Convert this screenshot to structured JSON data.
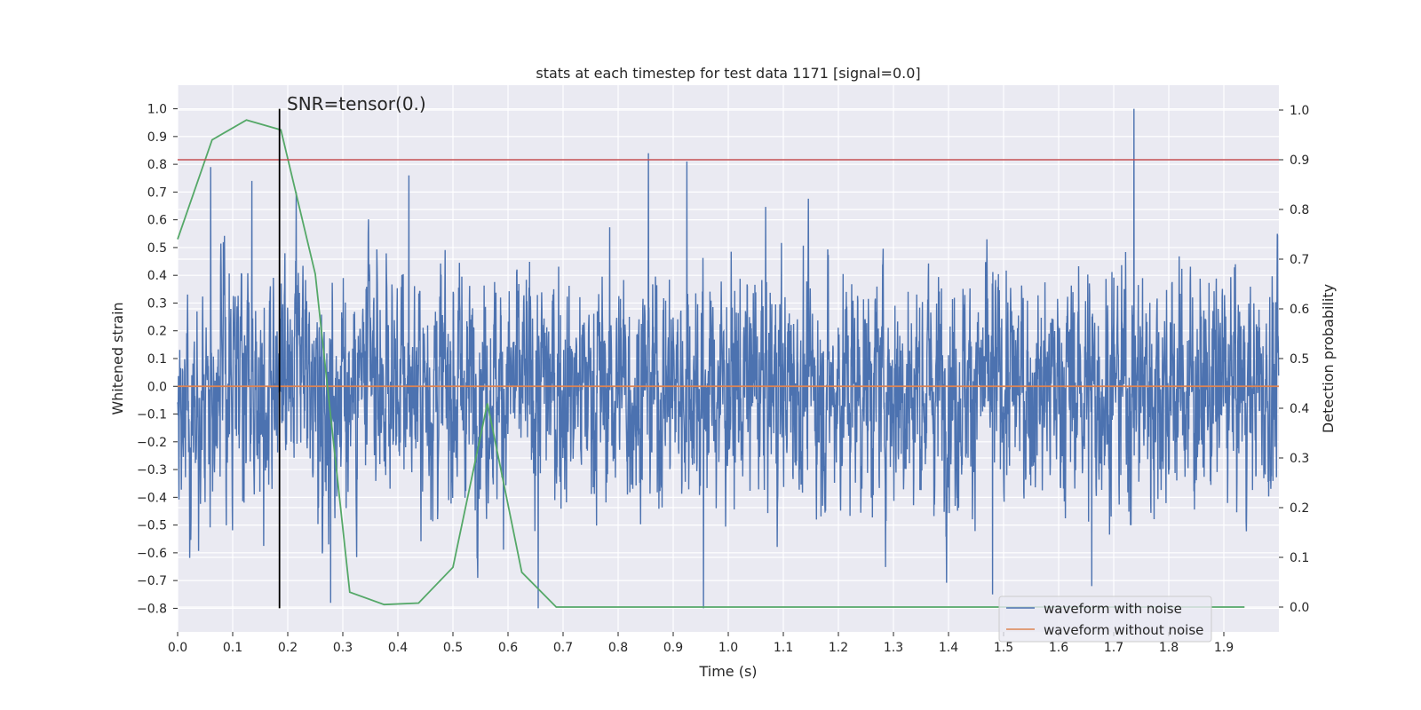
{
  "chart_data": {
    "type": "line",
    "title": "stats at each timestep for test data 1171 [signal=0.0]",
    "xlabel": "Time (s)",
    "ylabel": "Whitened strain",
    "y2label": "Detection probability",
    "xlim": [
      0.0,
      2.0
    ],
    "ylim": [
      -0.885,
      1.085
    ],
    "y2lim": [
      -0.05,
      1.05
    ],
    "xticks": [
      0.0,
      0.1,
      0.2,
      0.3,
      0.4,
      0.5,
      0.6,
      0.7,
      0.8,
      0.9,
      1.0,
      1.1,
      1.2,
      1.3,
      1.4,
      1.5,
      1.6,
      1.7,
      1.8,
      1.9
    ],
    "xtick_labels": [
      "0.0",
      "0.1",
      "0.2",
      "0.3",
      "0.4",
      "0.5",
      "0.6",
      "0.7",
      "0.8",
      "0.9",
      "1.0",
      "1.1",
      "1.2",
      "1.3",
      "1.4",
      "1.5",
      "1.6",
      "1.7",
      "1.8",
      "1.9"
    ],
    "yticks": [
      1.0,
      0.9,
      0.8,
      0.7,
      0.6,
      0.5,
      0.4,
      0.3,
      0.2,
      0.1,
      0.0,
      -0.1,
      -0.2,
      -0.3,
      -0.4,
      -0.5,
      -0.6,
      -0.7,
      -0.8
    ],
    "ytick_labels": [
      "1.0",
      "0.9",
      "0.8",
      "0.7",
      "0.6",
      "0.5",
      "0.4",
      "0.3",
      "0.2",
      "0.1",
      "0.0",
      "−0.1",
      "−0.2",
      "−0.3",
      "−0.4",
      "−0.5",
      "−0.6",
      "−0.7",
      "−0.8"
    ],
    "y2ticks": [
      1.0,
      0.9,
      0.8,
      0.7,
      0.6,
      0.5,
      0.4,
      0.3,
      0.2,
      0.1,
      0.0
    ],
    "y2tick_labels": [
      "1.0",
      "0.9",
      "0.8",
      "0.7",
      "0.6",
      "0.5",
      "0.4",
      "0.3",
      "0.2",
      "0.1",
      "0.0"
    ],
    "grid": true,
    "legend_position": "lower-right",
    "annotation": {
      "text": "SNR=tensor(0.)",
      "vline_x": 0.185,
      "vline_ymin": -0.8,
      "vline_ymax": 1.0
    },
    "threshold": {
      "y2": 0.9,
      "color": "#c44e52"
    },
    "series": [
      {
        "name": "waveform with noise",
        "axis": "left",
        "color": "#4c72b0",
        "sample_rate": 2048,
        "duration": 2.0,
        "amplitude_range": [
          -0.8,
          1.0
        ],
        "peaks": [
          {
            "x": 0.06,
            "y": 0.79
          },
          {
            "x": 0.135,
            "y": 0.74
          },
          {
            "x": 0.42,
            "y": 0.76
          },
          {
            "x": 0.855,
            "y": 0.84
          },
          {
            "x": 0.925,
            "y": 0.81
          },
          {
            "x": 1.737,
            "y": 1.0
          },
          {
            "x": 0.278,
            "y": -0.78
          },
          {
            "x": 0.655,
            "y": -0.8
          },
          {
            "x": 0.955,
            "y": -0.8
          },
          {
            "x": 1.48,
            "y": -0.75
          },
          {
            "x": 1.66,
            "y": -0.72
          }
        ]
      },
      {
        "name": "waveform without noise",
        "axis": "left",
        "color": "#dd8452",
        "x": [
          0.0,
          2.0
        ],
        "y": [
          0.0,
          0.0
        ]
      },
      {
        "name": "detection probability",
        "axis": "right",
        "color": "#55a868",
        "x": [
          0.0,
          0.0625,
          0.125,
          0.1875,
          0.25,
          0.3125,
          0.375,
          0.4375,
          0.5,
          0.5625,
          0.625,
          0.6875,
          0.75,
          0.8125,
          0.875,
          0.9375,
          1.0,
          1.0625,
          1.125,
          1.1875,
          1.25,
          1.3125,
          1.375,
          1.4375,
          1.5,
          1.5625,
          1.625,
          1.6875,
          1.75,
          1.8125,
          1.875,
          1.9375
        ],
        "y": [
          0.74,
          0.94,
          0.98,
          0.96,
          0.67,
          0.03,
          0.005,
          0.008,
          0.08,
          0.41,
          0.07,
          0.0,
          0.0,
          0.0,
          0.0,
          0.0,
          0.0,
          0.0,
          0.0,
          0.0,
          0.0,
          0.0,
          0.0,
          0.0,
          0.0,
          0.0,
          0.0,
          0.0,
          0.0,
          0.0,
          0.0,
          0.0
        ]
      }
    ]
  }
}
